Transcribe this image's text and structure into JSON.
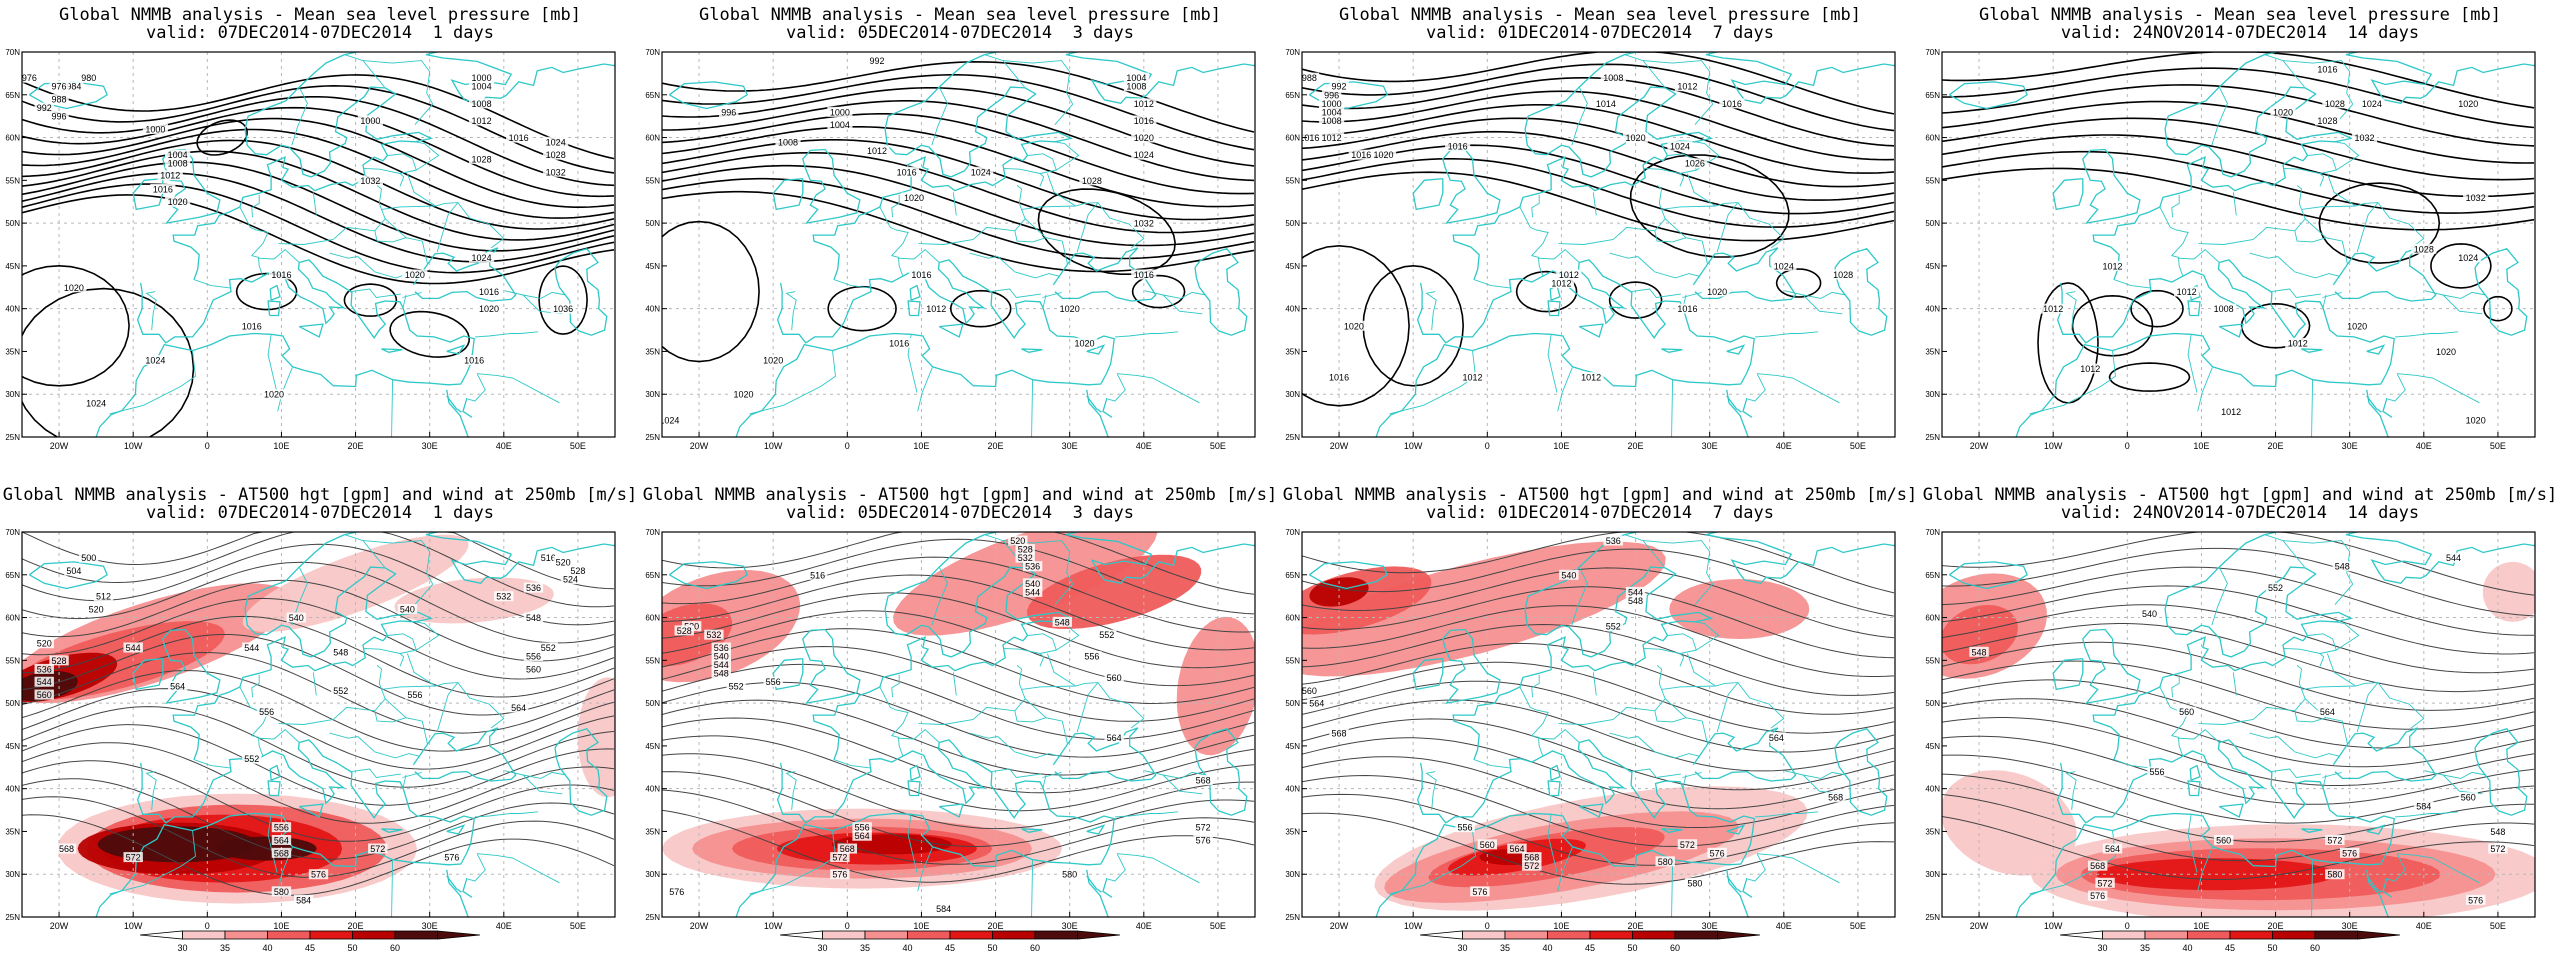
{
  "colors": {
    "coast": "#2ec8c8",
    "contour": "#000000",
    "grid": "#b8b8b8",
    "wind_shades": [
      "#ffffff",
      "#f9c7c7",
      "#f59090",
      "#ef5b5b",
      "#e31616",
      "#b80000",
      "#4d0b0b"
    ]
  },
  "colorbar": {
    "labels": [
      "30",
      "35",
      "40",
      "45",
      "50",
      "60"
    ]
  },
  "chart_data": [
    {
      "type": "heatmap",
      "panel": "mslp-1",
      "title": "Global NMMB analysis - Mean sea level pressure [mb]",
      "subtitle": "valid: 07DEC2014-07DEC2014  1 days",
      "x_ticks": [
        "20W",
        "10W",
        "0",
        "10E",
        "20E",
        "30E",
        "40E",
        "50E"
      ],
      "y_ticks": [
        "70N",
        "65N",
        "60N",
        "55N",
        "50N",
        "45N",
        "40N",
        "35N",
        "30N",
        "25N"
      ],
      "contour_labels": [
        "976",
        "980",
        "984",
        "988",
        "992",
        "996",
        "1000",
        "1004",
        "1008",
        "1012",
        "1016",
        "1020",
        "1024",
        "1028",
        "1032",
        "1036"
      ]
    },
    {
      "type": "heatmap",
      "panel": "mslp-3",
      "title": "Global NMMB analysis - Mean sea level pressure [mb]",
      "subtitle": "valid: 05DEC2014-07DEC2014  3 days",
      "x_ticks": [
        "20W",
        "10W",
        "0",
        "10E",
        "20E",
        "30E",
        "40E",
        "50E"
      ],
      "y_ticks": [
        "70N",
        "65N",
        "60N",
        "55N",
        "50N",
        "45N",
        "40N",
        "35N",
        "30N",
        "25N"
      ],
      "contour_labels": [
        "992",
        "996",
        "1000",
        "1004",
        "1008",
        "1012",
        "1016",
        "1020",
        "1024",
        "1028",
        "1032"
      ]
    },
    {
      "type": "heatmap",
      "panel": "mslp-7",
      "title": "Global NMMB analysis - Mean sea level pressure [mb]",
      "subtitle": "valid: 01DEC2014-07DEC2014  7 days",
      "x_ticks": [
        "20W",
        "10W",
        "0",
        "10E",
        "20E",
        "30E",
        "40E",
        "50E"
      ],
      "y_ticks": [
        "70N",
        "65N",
        "60N",
        "55N",
        "50N",
        "45N",
        "40N",
        "35N",
        "30N",
        "25N"
      ],
      "contour_labels": [
        "988",
        "992",
        "996",
        "1000",
        "1004",
        "1008",
        "1012",
        "1016",
        "1020",
        "1024",
        "1028"
      ]
    },
    {
      "type": "heatmap",
      "panel": "mslp-14",
      "title": "Global NMMB analysis - Mean sea level pressure [mb]",
      "subtitle": "valid: 24NOV2014-07DEC2014  14 days",
      "x_ticks": [
        "20W",
        "10W",
        "0",
        "10E",
        "20E",
        "30E",
        "40E",
        "50E"
      ],
      "y_ticks": [
        "70N",
        "65N",
        "60N",
        "55N",
        "50N",
        "45N",
        "40N",
        "35N",
        "30N",
        "25N"
      ],
      "contour_labels": [
        "1008",
        "1012",
        "1016",
        "1020",
        "1024",
        "1028",
        "1032"
      ]
    },
    {
      "type": "heatmap",
      "panel": "z500-1",
      "title": "Global NMMB analysis - AT500 hgt [gpm] and wind at 250mb [m/s]",
      "subtitle": "valid: 07DEC2014-07DEC2014  1 days",
      "x_ticks": [
        "20W",
        "10W",
        "0",
        "10E",
        "20E",
        "30E",
        "40E",
        "50E"
      ],
      "y_ticks": [
        "70N",
        "65N",
        "60N",
        "55N",
        "50N",
        "45N",
        "40N",
        "35N",
        "30N",
        "25N"
      ],
      "contour_labels": [
        "500",
        "504",
        "512",
        "520",
        "528",
        "536",
        "540",
        "544",
        "548",
        "552",
        "556",
        "560",
        "564",
        "568",
        "572",
        "576",
        "580",
        "584"
      ],
      "colorbar_labels": [
        "30",
        "35",
        "40",
        "45",
        "50",
        "60"
      ]
    },
    {
      "type": "heatmap",
      "panel": "z500-3",
      "title": "Global NMMB analysis - AT500 hgt [gpm] and wind at 250mb [m/s]",
      "subtitle": "valid: 05DEC2014-07DEC2014  3 days",
      "x_ticks": [
        "20W",
        "10W",
        "0",
        "10E",
        "20E",
        "30E",
        "40E",
        "50E"
      ],
      "y_ticks": [
        "70N",
        "65N",
        "60N",
        "55N",
        "50N",
        "45N",
        "40N",
        "35N",
        "30N",
        "25N"
      ],
      "contour_labels": [
        "516",
        "520",
        "528",
        "532",
        "536",
        "540",
        "544",
        "548",
        "552",
        "556",
        "560",
        "564",
        "568",
        "572",
        "576",
        "580",
        "584"
      ],
      "colorbar_labels": [
        "30",
        "35",
        "40",
        "45",
        "50",
        "60"
      ]
    },
    {
      "type": "heatmap",
      "panel": "z500-7",
      "title": "Global NMMB analysis - AT500 hgt [gpm] and wind at 250mb [m/s]",
      "subtitle": "valid: 01DEC2014-07DEC2014  7 days",
      "x_ticks": [
        "20W",
        "10W",
        "0",
        "10E",
        "20E",
        "30E",
        "40E",
        "50E"
      ],
      "y_ticks": [
        "70N",
        "65N",
        "60N",
        "55N",
        "50N",
        "45N",
        "40N",
        "35N",
        "30N",
        "25N"
      ],
      "contour_labels": [
        "536",
        "540",
        "544",
        "548",
        "552",
        "556",
        "560",
        "564",
        "568",
        "572",
        "576",
        "580"
      ],
      "colorbar_labels": [
        "30",
        "35",
        "40",
        "45",
        "50",
        "60"
      ]
    },
    {
      "type": "heatmap",
      "panel": "z500-14",
      "title": "Global NMMB analysis - AT500 hgt [gpm] and wind at 250mb [m/s]",
      "subtitle": "valid: 24NOV2014-07DEC2014  14 days",
      "x_ticks": [
        "20W",
        "10W",
        "0",
        "10E",
        "20E",
        "30E",
        "40E",
        "50E"
      ],
      "y_ticks": [
        "70N",
        "65N",
        "60N",
        "55N",
        "50N",
        "45N",
        "40N",
        "35N",
        "30N",
        "25N"
      ],
      "contour_labels": [
        "540",
        "544",
        "548",
        "552",
        "556",
        "560",
        "564",
        "568",
        "572",
        "576",
        "580",
        "584"
      ],
      "colorbar_labels": [
        "30",
        "35",
        "40",
        "45",
        "50",
        "60"
      ]
    }
  ]
}
